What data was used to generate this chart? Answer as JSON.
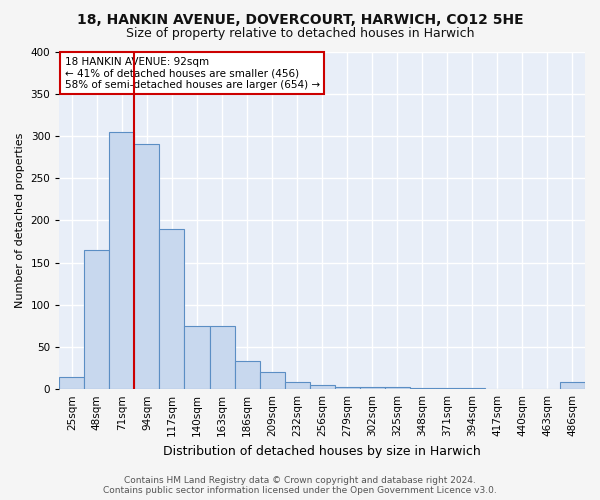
{
  "title1": "18, HANKIN AVENUE, DOVERCOURT, HARWICH, CO12 5HE",
  "title2": "Size of property relative to detached houses in Harwich",
  "xlabel": "Distribution of detached houses by size in Harwich",
  "ylabel": "Number of detached properties",
  "bar_labels": [
    "25sqm",
    "48sqm",
    "71sqm",
    "94sqm",
    "117sqm",
    "140sqm",
    "163sqm",
    "186sqm",
    "209sqm",
    "232sqm",
    "256sqm",
    "279sqm",
    "302sqm",
    "325sqm",
    "348sqm",
    "371sqm",
    "394sqm",
    "417sqm",
    "440sqm",
    "463sqm",
    "486sqm"
  ],
  "bar_heights": [
    15,
    165,
    305,
    290,
    190,
    75,
    75,
    33,
    20,
    8,
    5,
    3,
    2,
    2,
    1,
    1,
    1,
    0,
    0,
    0,
    8
  ],
  "bar_color": "#c8d8ee",
  "bar_edge_color": "#5b8ec4",
  "red_line_index": 3,
  "annotation_text": "18 HANKIN AVENUE: 92sqm\n← 41% of detached houses are smaller (456)\n58% of semi-detached houses are larger (654) →",
  "annotation_box_color": "#ffffff",
  "annotation_box_edge_color": "#cc0000",
  "red_line_color": "#cc0000",
  "fig_bg_color": "#f5f5f5",
  "plot_bg_color": "#e8eef8",
  "grid_color": "#ffffff",
  "footer1": "Contains HM Land Registry data © Crown copyright and database right 2024.",
  "footer2": "Contains public sector information licensed under the Open Government Licence v3.0.",
  "ylim": [
    0,
    400
  ],
  "yticks": [
    0,
    50,
    100,
    150,
    200,
    250,
    300,
    350,
    400
  ],
  "title1_fontsize": 10,
  "title2_fontsize": 9,
  "xlabel_fontsize": 9,
  "ylabel_fontsize": 8,
  "tick_fontsize": 7.5,
  "annotation_fontsize": 7.5,
  "footer_fontsize": 6.5
}
